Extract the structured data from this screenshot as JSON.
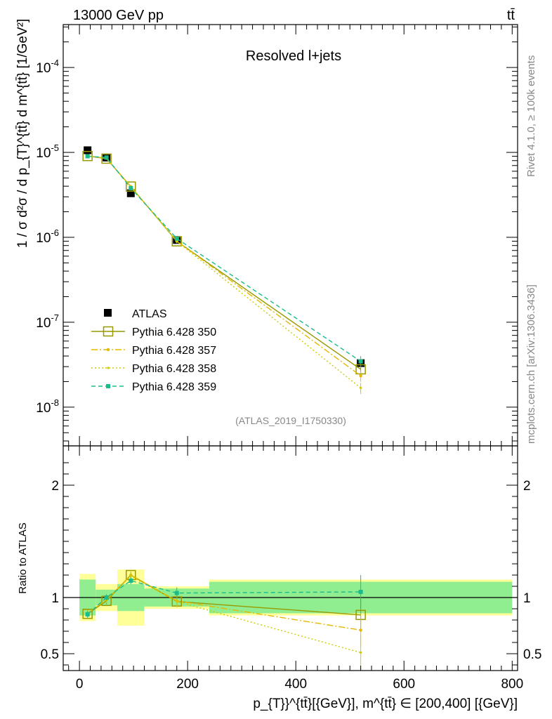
{
  "header": {
    "left": "13000 GeV pp",
    "right": "tt̄"
  },
  "side": {
    "rivet": "Rivet 4.1.0, ≥ 100k events",
    "mcplots": "mcplots.cern.ch [arXiv:1306.3436]"
  },
  "chart_data": {
    "type": "line",
    "title": "Resolved l+jets",
    "analysis_id": "(ATLAS_2019_I1750330)",
    "ylabel_main": "1 / σ d²σ / d p_{T}^{tt̄} d m^{tt̄} [1/GeV²]",
    "ylabel_ratio": "Ratio to ATLAS",
    "xlabel": "p_{T}}^{tt̄}[{GeV}], m^{tt̄} ∈ [200,400] [{GeV}]",
    "xlim": [
      -30,
      810
    ],
    "ylim_main": [
      3.5e-09,
      0.00032
    ],
    "ylim_ratio": [
      0.35,
      2.35
    ],
    "x_ticks": [
      "0",
      "200",
      "400",
      "600",
      "800"
    ],
    "y_ticks_main": [
      "10^{-4}",
      "10^{-5}",
      "10^{-6}",
      "10^{-7}",
      "10^{-8}"
    ],
    "y_ticks_ratio": [
      "2",
      "1",
      "0.5"
    ],
    "bins": [
      {
        "lo": 0,
        "hi": 30,
        "x": 15
      },
      {
        "lo": 30,
        "hi": 70,
        "x": 50
      },
      {
        "lo": 70,
        "hi": 120,
        "x": 95
      },
      {
        "lo": 120,
        "hi": 240,
        "x": 180
      },
      {
        "lo": 240,
        "hi": 800,
        "x": 520
      }
    ],
    "data": {
      "name": "ATLAS",
      "color": "#000000",
      "values": [
        1.06e-05,
        8.7e-06,
        3.3e-06,
        9.3e-07,
        3.3e-08
      ],
      "band_inner": [
        0.16,
        0.07,
        0.12,
        0.08,
        0.14
      ],
      "band_outer": [
        0.21,
        0.12,
        0.25,
        0.1,
        0.16
      ]
    },
    "series": [
      {
        "name": "Pythia 6.428 350",
        "color": "#999900",
        "dash": "",
        "marker": "open-square",
        "ratio": [
          0.855,
          0.97,
          1.2,
          0.965,
          0.845
        ],
        "ratio_err": [
          0.03,
          0.03,
          0.03,
          0.05,
          0.15
        ]
      },
      {
        "name": "Pythia 6.428 357",
        "color": "#e6b800",
        "dash": "9,3,2,3",
        "marker": "star",
        "ratio": [
          0.86,
          0.98,
          1.2,
          0.97,
          0.71
        ],
        "ratio_err": [
          0.03,
          0.03,
          0.03,
          0.05,
          0.15
        ]
      },
      {
        "name": "Pythia 6.428 358",
        "color": "#cccc00",
        "dash": "2,3",
        "marker": "dot",
        "ratio": [
          0.86,
          0.98,
          1.19,
          0.965,
          0.51
        ],
        "ratio_err": [
          0.03,
          0.03,
          0.03,
          0.05,
          0.15
        ]
      },
      {
        "name": "Pythia 6.428 359",
        "color": "#1abc8a",
        "dash": "6,4",
        "marker": "filled-square",
        "ratio": [
          0.85,
          1.0,
          1.15,
          1.04,
          1.05
        ],
        "ratio_err": [
          0.03,
          0.03,
          0.03,
          0.05,
          0.15
        ]
      }
    ]
  },
  "colors": {
    "band_inner": "#90ee90",
    "band_outer": "#ffff99"
  }
}
